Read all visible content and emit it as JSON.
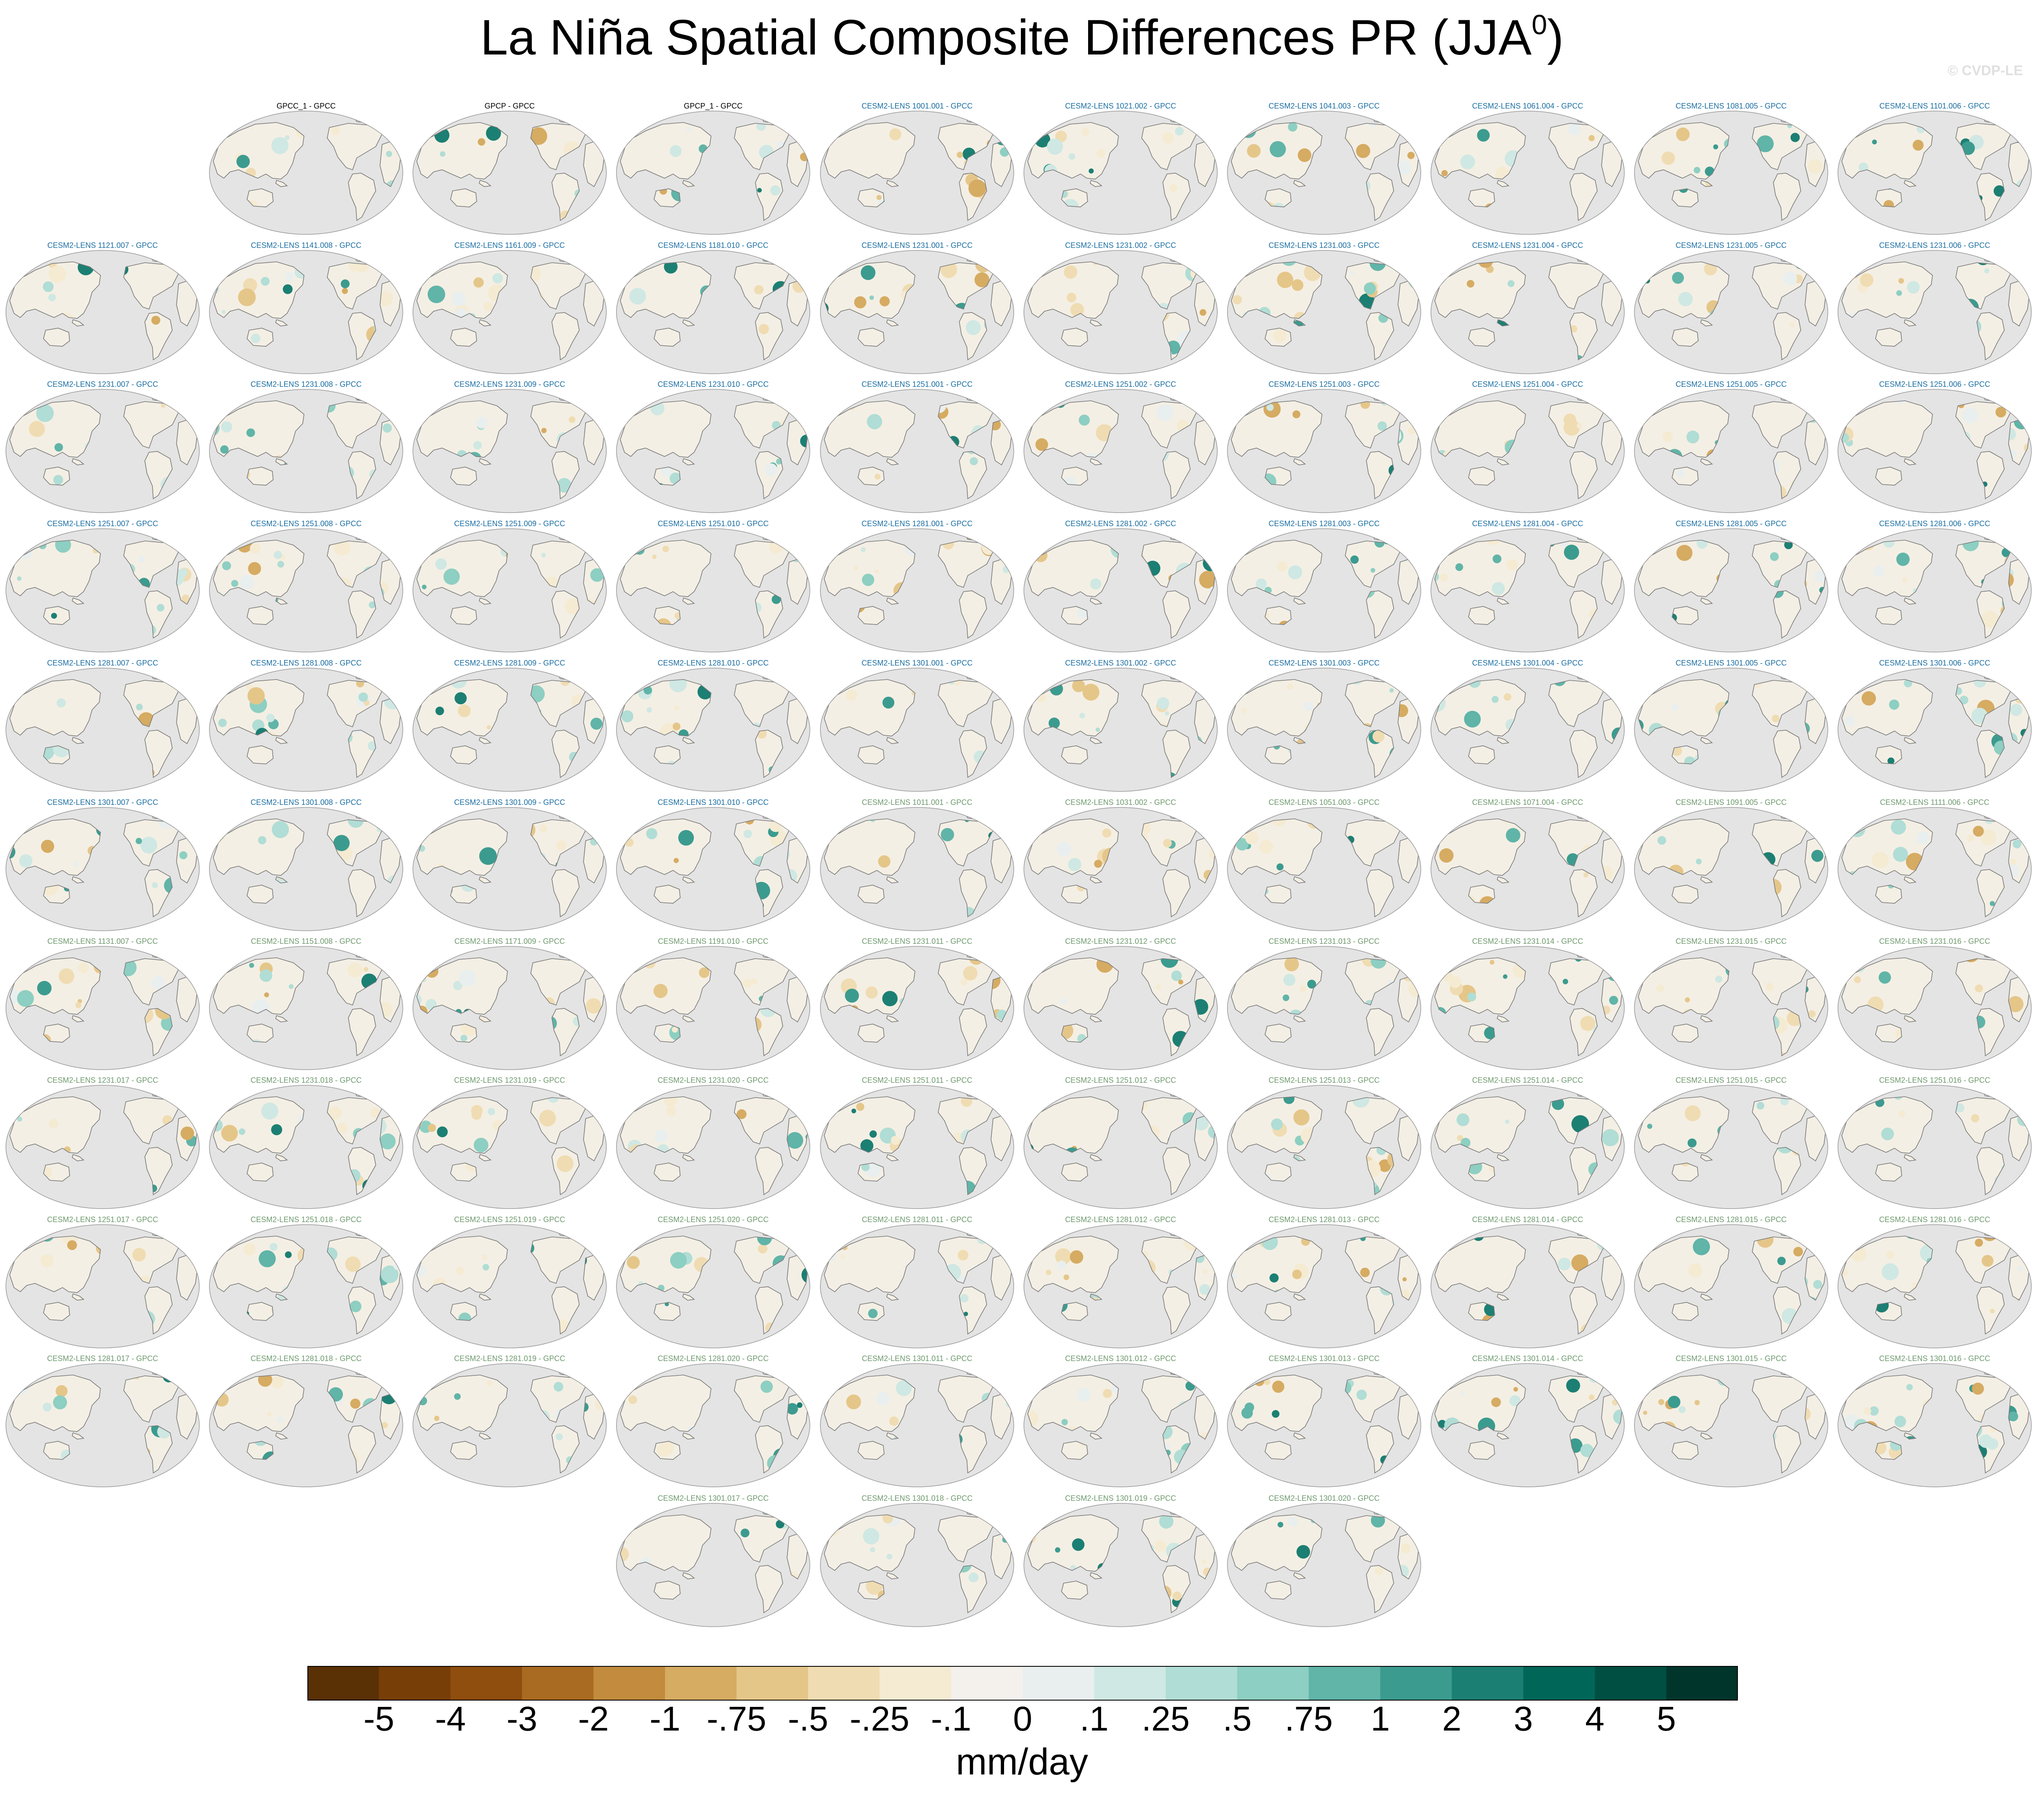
{
  "title": {
    "main": "La Niña Spatial Composite Differences PR (JJA",
    "sup": "0",
    "close": ")"
  },
  "watermark": "© CVDP-LE",
  "colors": {
    "obs_title": "#000000",
    "ens_a_title": "#1c6fa3",
    "ens_b_title": "#6f9a6f",
    "ocean": "#e4e4e4",
    "coast": "#7a7a7a"
  },
  "panels": {
    "row1": [
      "",
      "GPCC_1 - GPCC",
      "GPCP - GPCC",
      "GPCP_1 - GPCC",
      "CESM2-LENS 1001.001 - GPCC",
      "CESM2-LENS 1021.002 - GPCC",
      "CESM2-LENS 1041.003 - GPCC",
      "CESM2-LENS 1061.004 - GPCC",
      "CESM2-LENS 1081.005 - GPCC",
      "CESM2-LENS 1101.006 - GPCC"
    ],
    "row2": [
      "CESM2-LENS 1121.007 - GPCC",
      "CESM2-LENS 1141.008 - GPCC",
      "CESM2-LENS 1161.009 - GPCC",
      "CESM2-LENS 1181.010 - GPCC",
      "CESM2-LENS 1231.001 - GPCC",
      "CESM2-LENS 1231.002 - GPCC",
      "CESM2-LENS 1231.003 - GPCC",
      "CESM2-LENS 1231.004 - GPCC",
      "CESM2-LENS 1231.005 - GPCC",
      "CESM2-LENS 1231.006 - GPCC"
    ],
    "row3": [
      "CESM2-LENS 1231.007 - GPCC",
      "CESM2-LENS 1231.008 - GPCC",
      "CESM2-LENS 1231.009 - GPCC",
      "CESM2-LENS 1231.010 - GPCC",
      "CESM2-LENS 1251.001 - GPCC",
      "CESM2-LENS 1251.002 - GPCC",
      "CESM2-LENS 1251.003 - GPCC",
      "CESM2-LENS 1251.004 - GPCC",
      "CESM2-LENS 1251.005 - GPCC",
      "CESM2-LENS 1251.006 - GPCC"
    ],
    "row4": [
      "CESM2-LENS 1251.007 - GPCC",
      "CESM2-LENS 1251.008 - GPCC",
      "CESM2-LENS 1251.009 - GPCC",
      "CESM2-LENS 1251.010 - GPCC",
      "CESM2-LENS 1281.001 - GPCC",
      "CESM2-LENS 1281.002 - GPCC",
      "CESM2-LENS 1281.003 - GPCC",
      "CESM2-LENS 1281.004 - GPCC",
      "CESM2-LENS 1281.005 - GPCC",
      "CESM2-LENS 1281.006 - GPCC"
    ],
    "row5": [
      "CESM2-LENS 1281.007 - GPCC",
      "CESM2-LENS 1281.008 - GPCC",
      "CESM2-LENS 1281.009 - GPCC",
      "CESM2-LENS 1281.010 - GPCC",
      "CESM2-LENS 1301.001 - GPCC",
      "CESM2-LENS 1301.002 - GPCC",
      "CESM2-LENS 1301.003 - GPCC",
      "CESM2-LENS 1301.004 - GPCC",
      "CESM2-LENS 1301.005 - GPCC",
      "CESM2-LENS 1301.006 - GPCC"
    ],
    "row6": [
      "CESM2-LENS 1301.007 - GPCC",
      "CESM2-LENS 1301.008 - GPCC",
      "CESM2-LENS 1301.009 - GPCC",
      "CESM2-LENS 1301.010 - GPCC",
      "CESM2-LENS 1011.001 - GPCC",
      "CESM2-LENS 1031.002 - GPCC",
      "CESM2-LENS 1051.003 - GPCC",
      "CESM2-LENS 1071.004 - GPCC",
      "CESM2-LENS 1091.005 - GPCC",
      "CESM2-LENS 1111.006 - GPCC"
    ],
    "row7": [
      "CESM2-LENS 1131.007 - GPCC",
      "CESM2-LENS 1151.008 - GPCC",
      "CESM2-LENS 1171.009 - GPCC",
      "CESM2-LENS 1191.010 - GPCC",
      "CESM2-LENS 1231.011 - GPCC",
      "CESM2-LENS 1231.012 - GPCC",
      "CESM2-LENS 1231.013 - GPCC",
      "CESM2-LENS 1231.014 - GPCC",
      "CESM2-LENS 1231.015 - GPCC",
      "CESM2-LENS 1231.016 - GPCC"
    ],
    "row8": [
      "CESM2-LENS 1231.017 - GPCC",
      "CESM2-LENS 1231.018 - GPCC",
      "CESM2-LENS 1231.019 - GPCC",
      "CESM2-LENS 1231.020 - GPCC",
      "CESM2-LENS 1251.011 - GPCC",
      "CESM2-LENS 1251.012 - GPCC",
      "CESM2-LENS 1251.013 - GPCC",
      "CESM2-LENS 1251.014 - GPCC",
      "CESM2-LENS 1251.015 - GPCC",
      "CESM2-LENS 1251.016 - GPCC"
    ],
    "row9": [
      "CESM2-LENS 1251.017 - GPCC",
      "CESM2-LENS 1251.018 - GPCC",
      "CESM2-LENS 1251.019 - GPCC",
      "CESM2-LENS 1251.020 - GPCC",
      "CESM2-LENS 1281.011 - GPCC",
      "CESM2-LENS 1281.012 - GPCC",
      "CESM2-LENS 1281.013 - GPCC",
      "CESM2-LENS 1281.014 - GPCC",
      "CESM2-LENS 1281.015 - GPCC",
      "CESM2-LENS 1281.016 - GPCC"
    ],
    "row10": [
      "CESM2-LENS 1281.017 - GPCC",
      "CESM2-LENS 1281.018 - GPCC",
      "CESM2-LENS 1281.019 - GPCC",
      "CESM2-LENS 1281.020 - GPCC",
      "CESM2-LENS 1301.011 - GPCC",
      "CESM2-LENS 1301.012 - GPCC",
      "CESM2-LENS 1301.013 - GPCC",
      "CESM2-LENS 1301.014 - GPCC",
      "CESM2-LENS 1301.015 - GPCC",
      "CESM2-LENS 1301.016 - GPCC"
    ],
    "row11": [
      "",
      "",
      "",
      "CESM2-LENS 1301.017 - GPCC",
      "CESM2-LENS 1301.018 - GPCC",
      "CESM2-LENS 1301.019 - GPCC",
      "CESM2-LENS 1301.020 - GPCC",
      "",
      "",
      ""
    ]
  },
  "colorbar": {
    "colors": [
      "#5a3005",
      "#773e08",
      "#8f4d0e",
      "#a96a22",
      "#c28b3d",
      "#d6ab62",
      "#e5c689",
      "#f0dcb2",
      "#f5ebd3",
      "#f4f1ec",
      "#e9efee",
      "#cfe8e3",
      "#b0ddd5",
      "#8dcfc2",
      "#60b4a8",
      "#3c9b8f",
      "#1c7f73",
      "#006658",
      "#004f43",
      "#00352c"
    ],
    "labels": [
      "-5",
      "-4",
      "-3",
      "-2",
      "-1",
      "-.75",
      "-.5",
      "-.25",
      "-.1",
      "0",
      ".1",
      ".25",
      ".5",
      ".75",
      "1",
      "2",
      "3",
      "4",
      "5"
    ],
    "units": "mm/day"
  }
}
